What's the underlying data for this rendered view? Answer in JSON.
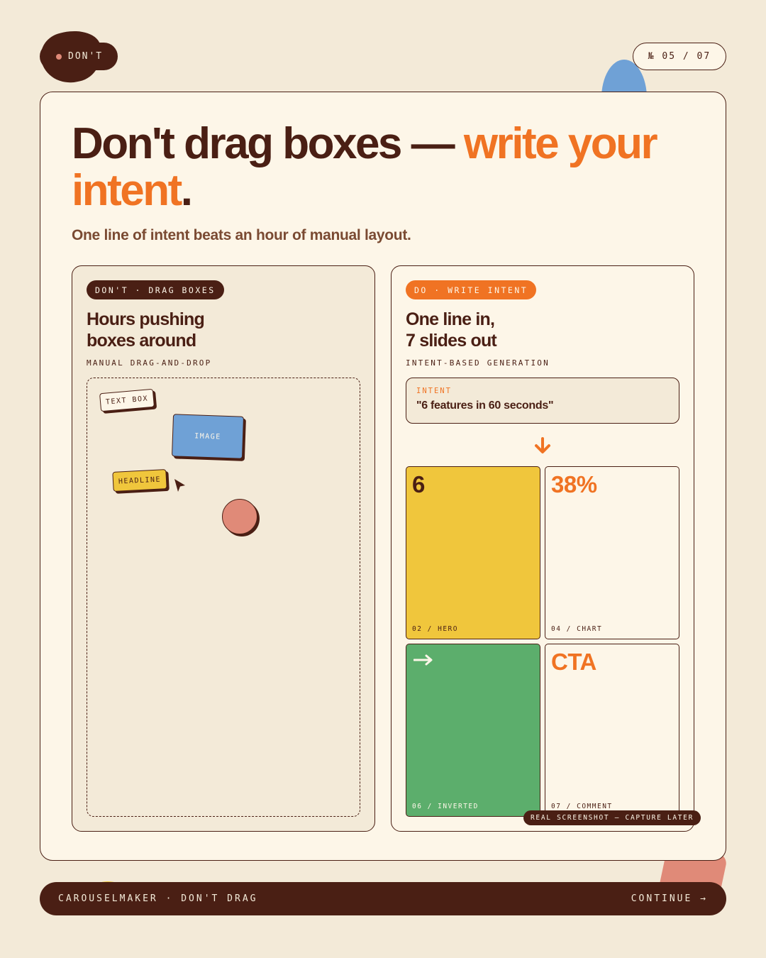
{
  "header": {
    "tag_label": "DON'T",
    "page_number": "№ 05 / 07"
  },
  "headline": {
    "part1": "Don't drag boxes — ",
    "accent": "write your intent",
    "end": "."
  },
  "subhead": "One line of intent beats an hour of manual layout.",
  "left_panel": {
    "pill": "DON'T · DRAG BOXES",
    "title_line1": "Hours pushing",
    "title_line2": "boxes around",
    "caption": "MANUAL DRAG-AND-DROP",
    "chips": {
      "text_box": "TEXT BOX",
      "image": "IMAGE",
      "headline": "HEADLINE"
    }
  },
  "right_panel": {
    "pill": "DO · WRITE INTENT",
    "title_line1": "One line in,",
    "title_line2": "7 slides out",
    "caption": "INTENT-BASED GENERATION",
    "intent_label": "INTENT",
    "intent_value": "\"6 features in 60 seconds\"",
    "tiles": [
      {
        "big": "6",
        "label": "02 / HERO"
      },
      {
        "big": "38%",
        "label": "04 / CHART"
      },
      {
        "big": "",
        "icon": "arrow-right-icon",
        "label": "06 / INVERTED"
      },
      {
        "big": "CTA",
        "label": "07 / COMMENT"
      }
    ],
    "screenshot_tag": "REAL SCREENSHOT — CAPTURE LATER"
  },
  "footer": {
    "brand": "CAROUSELMAKER · DON'T DRAG",
    "continue": "CONTINUE →"
  },
  "colors": {
    "background": "#f3ead8",
    "card": "#fdf6e8",
    "dark": "#4a1f14",
    "accent": "#f07323",
    "yellow": "#f0c63c",
    "green": "#5cae6c",
    "blue": "#6fa1d6",
    "pink": "#e08a78"
  }
}
